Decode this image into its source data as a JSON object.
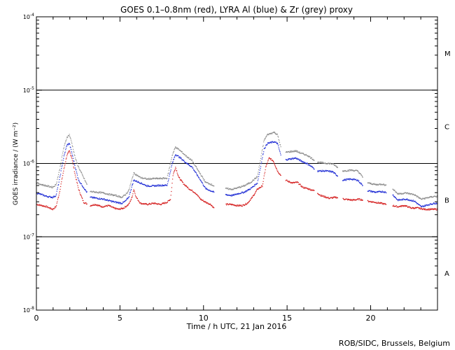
{
  "chart_data": {
    "type": "scatter",
    "title": "GOES 0.1–0.8nm (red), LYRA Al (blue) & Zr (grey) proxy",
    "xlabel": "Time / h UTC, 21 Jan 2016",
    "ylabel": "GOES irradiance / (W m⁻²)",
    "xlim": [
      0,
      24
    ],
    "ylim": [
      1e-08,
      0.0001
    ],
    "yscale": "log",
    "x_ticks": [
      0,
      5,
      10,
      15,
      20
    ],
    "y_ticks": [
      {
        "value": 1e-08,
        "label_base": "10",
        "label_exp": "-8"
      },
      {
        "value": 1e-07,
        "label_base": "10",
        "label_exp": "-7"
      },
      {
        "value": 1e-06,
        "label_base": "10",
        "label_exp": "-6"
      },
      {
        "value": 1e-05,
        "label_base": "10",
        "label_exp": "-5"
      },
      {
        "value": 0.0001,
        "label_base": "10",
        "label_exp": "-4"
      }
    ],
    "reference_lines": [
      1e-07,
      1e-06,
      1e-05
    ],
    "flare_classes": [
      {
        "label": "A",
        "value": 3.2e-08
      },
      {
        "label": "B",
        "value": 3.2e-07
      },
      {
        "label": "C",
        "value": 3.2e-06
      },
      {
        "label": "M",
        "value": 3.2e-05
      }
    ],
    "series": [
      {
        "color": "#d41c1c",
        "points": [
          [
            0.0,
            2.8e-07
          ],
          [
            0.3,
            2.7e-07
          ],
          [
            0.6,
            2.6e-07
          ],
          [
            0.95,
            2.4e-07
          ],
          [
            1.15,
            2.6e-07
          ],
          [
            1.35,
            4e-07
          ],
          [
            1.6,
            8e-07
          ],
          [
            1.8,
            1.3e-06
          ],
          [
            1.95,
            1.5e-06
          ],
          [
            2.1,
            1.2e-06
          ],
          [
            2.3,
            7e-07
          ],
          [
            2.5,
            4.5e-07
          ],
          [
            2.8,
            3e-07
          ],
          [
            3.2,
            2.7e-07
          ],
          [
            3.5,
            2.8e-07
          ],
          [
            3.9,
            2.6e-07
          ],
          [
            4.3,
            2.7e-07
          ],
          [
            4.6,
            2.5e-07
          ],
          [
            4.9,
            2.4e-07
          ],
          [
            5.2,
            2.5e-07
          ],
          [
            5.5,
            2.8e-07
          ],
          [
            5.7,
            3.5e-07
          ],
          [
            5.8,
            4.5e-07
          ],
          [
            5.95,
            3.5e-07
          ],
          [
            6.2,
            2.9e-07
          ],
          [
            6.6,
            2.8e-07
          ],
          [
            7.0,
            2.9e-07
          ],
          [
            7.4,
            2.8e-07
          ],
          [
            7.8,
            3e-07
          ],
          [
            8.0,
            3.3e-07
          ],
          [
            8.15,
            7e-07
          ],
          [
            8.3,
            9e-07
          ],
          [
            8.5,
            6.5e-07
          ],
          [
            8.8,
            5.3e-07
          ],
          [
            9.1,
            4.6e-07
          ],
          [
            9.5,
            4e-07
          ],
          [
            9.8,
            3.3e-07
          ],
          [
            10.1,
            3e-07
          ],
          [
            10.4,
            2.8e-07
          ],
          [
            10.6,
            2.5e-07
          ],
          [
            10.9,
            2.6e-07
          ],
          [
            11.2,
            2.8e-07
          ],
          [
            11.6,
            2.8e-07
          ],
          [
            12.0,
            2.7e-07
          ],
          [
            12.3,
            2.7e-07
          ],
          [
            12.6,
            2.9e-07
          ],
          [
            12.9,
            3.5e-07
          ],
          [
            13.2,
            4.5e-07
          ],
          [
            13.5,
            5e-07
          ],
          [
            13.7,
            9e-07
          ],
          [
            13.9,
            1.2e-06
          ],
          [
            14.15,
            1.1e-06
          ],
          [
            14.4,
            8e-07
          ],
          [
            14.7,
            6.5e-07
          ],
          [
            15.0,
            5.8e-07
          ],
          [
            15.3,
            5.5e-07
          ],
          [
            15.6,
            5.6e-07
          ],
          [
            15.9,
            4.8e-07
          ],
          [
            16.2,
            4.6e-07
          ],
          [
            16.6,
            4.3e-07
          ],
          [
            17.0,
            3.7e-07
          ],
          [
            17.5,
            3.4e-07
          ],
          [
            17.9,
            3.5e-07
          ],
          [
            18.4,
            3.3e-07
          ],
          [
            18.9,
            3.2e-07
          ],
          [
            19.3,
            3.3e-07
          ],
          [
            19.8,
            3.1e-07
          ],
          [
            20.2,
            3e-07
          ],
          [
            20.6,
            2.9e-07
          ],
          [
            20.9,
            2.8e-07
          ],
          [
            21.3,
            2.7e-07
          ],
          [
            21.6,
            2.6e-07
          ],
          [
            22.0,
            2.7e-07
          ],
          [
            22.4,
            2.5e-07
          ],
          [
            22.8,
            2.5e-07
          ],
          [
            23.2,
            2.4e-07
          ],
          [
            23.6,
            2.4e-07
          ],
          [
            24.0,
            2.4e-07
          ]
        ]
      },
      {
        "color": "#1c2ad4",
        "points": [
          [
            0.0,
            4e-07
          ],
          [
            0.3,
            3.8e-07
          ],
          [
            0.6,
            3.6e-07
          ],
          [
            0.95,
            3.5e-07
          ],
          [
            1.15,
            3.7e-07
          ],
          [
            1.35,
            6e-07
          ],
          [
            1.6,
            1.2e-06
          ],
          [
            1.8,
            1.8e-06
          ],
          [
            1.95,
            1.9e-06
          ],
          [
            2.1,
            1.4e-06
          ],
          [
            2.3,
            9e-07
          ],
          [
            2.5,
            6e-07
          ],
          [
            3.2,
            3.5e-07
          ],
          [
            3.6,
            3.4e-07
          ],
          [
            4.0,
            3.3e-07
          ],
          [
            4.2,
            3.2e-07
          ],
          [
            4.7,
            3e-07
          ],
          [
            5.1,
            2.9e-07
          ],
          [
            5.3,
            3.1e-07
          ],
          [
            5.5,
            3.5e-07
          ],
          [
            5.8,
            6e-07
          ],
          [
            6.2,
            5.5e-07
          ],
          [
            6.6,
            5e-07
          ],
          [
            7.0,
            5e-07
          ],
          [
            7.4,
            5.1e-07
          ],
          [
            7.8,
            5.1e-07
          ],
          [
            8.1,
            1e-06
          ],
          [
            8.3,
            1.35e-06
          ],
          [
            8.6,
            1.2e-06
          ],
          [
            8.9,
            1.05e-06
          ],
          [
            9.3,
            9e-07
          ],
          [
            9.6,
            7e-07
          ],
          [
            9.8,
            6e-07
          ],
          [
            10.1,
            4.6e-07
          ],
          [
            10.4,
            4.3e-07
          ],
          [
            10.6,
            4.1e-07
          ],
          [
            11.3,
            3.8e-07
          ],
          [
            11.7,
            3.7e-07
          ],
          [
            12.0,
            3.9e-07
          ],
          [
            12.4,
            4.1e-07
          ],
          [
            12.8,
            4.6e-07
          ],
          [
            13.2,
            5.5e-07
          ],
          [
            13.6,
            1.6e-06
          ],
          [
            13.8,
            1.9e-06
          ],
          [
            14.2,
            2e-06
          ],
          [
            14.4,
            1.9e-06
          ],
          [
            14.7,
            1.1e-06
          ],
          [
            15.0,
            1.15e-06
          ],
          [
            15.5,
            1.2e-06
          ],
          [
            15.8,
            1.1e-06
          ],
          [
            16.2,
            1e-06
          ],
          [
            16.8,
            8e-07
          ],
          [
            17.3,
            8e-07
          ],
          [
            17.7,
            7.8e-07
          ],
          [
            18.3,
            6e-07
          ],
          [
            18.8,
            6.2e-07
          ],
          [
            19.2,
            6e-07
          ],
          [
            19.8,
            4.3e-07
          ],
          [
            20.3,
            4.1e-07
          ],
          [
            20.7,
            4.2e-07
          ],
          [
            21.3,
            3.8e-07
          ],
          [
            21.6,
            3.2e-07
          ],
          [
            22.1,
            3.3e-07
          ],
          [
            22.6,
            3.1e-07
          ],
          [
            23.0,
            2.6e-07
          ],
          [
            23.5,
            2.8e-07
          ],
          [
            23.8,
            2.9e-07
          ],
          [
            24.0,
            2.9e-07
          ]
        ]
      },
      {
        "color": "#8a8a8a",
        "points": [
          [
            0.0,
            5.5e-07
          ],
          [
            0.3,
            5.2e-07
          ],
          [
            0.6,
            5e-07
          ],
          [
            0.95,
            4.8e-07
          ],
          [
            1.15,
            5.2e-07
          ],
          [
            1.35,
            8e-07
          ],
          [
            1.6,
            1.6e-06
          ],
          [
            1.8,
            2.3e-06
          ],
          [
            1.95,
            2.5e-06
          ],
          [
            2.1,
            1.9e-06
          ],
          [
            2.3,
            1.2e-06
          ],
          [
            2.5,
            9e-07
          ],
          [
            3.2,
            4.2e-07
          ],
          [
            3.6,
            4.1e-07
          ],
          [
            4.0,
            4e-07
          ],
          [
            4.2,
            3.9e-07
          ],
          [
            4.7,
            3.7e-07
          ],
          [
            5.1,
            3.5e-07
          ],
          [
            5.3,
            3.8e-07
          ],
          [
            5.5,
            4.3e-07
          ],
          [
            5.8,
            7.5e-07
          ],
          [
            6.2,
            6.5e-07
          ],
          [
            6.6,
            6.2e-07
          ],
          [
            7.0,
            6.3e-07
          ],
          [
            7.4,
            6.3e-07
          ],
          [
            7.8,
            6.4e-07
          ],
          [
            8.1,
            1.3e-06
          ],
          [
            8.3,
            1.7e-06
          ],
          [
            8.6,
            1.5e-06
          ],
          [
            8.9,
            1.3e-06
          ],
          [
            9.3,
            1.1e-06
          ],
          [
            9.6,
            8.5e-07
          ],
          [
            9.8,
            7.2e-07
          ],
          [
            10.1,
            5.6e-07
          ],
          [
            10.4,
            5.3e-07
          ],
          [
            10.6,
            5e-07
          ],
          [
            11.3,
            4.6e-07
          ],
          [
            11.7,
            4.5e-07
          ],
          [
            12.0,
            4.7e-07
          ],
          [
            12.4,
            5e-07
          ],
          [
            12.8,
            5.6e-07
          ],
          [
            13.2,
            6.7e-07
          ],
          [
            13.6,
            2.1e-06
          ],
          [
            13.8,
            2.5e-06
          ],
          [
            14.2,
            2.7e-06
          ],
          [
            14.4,
            2.5e-06
          ],
          [
            14.7,
            1.4e-06
          ],
          [
            15.0,
            1.45e-06
          ],
          [
            15.5,
            1.5e-06
          ],
          [
            15.8,
            1.4e-06
          ],
          [
            16.2,
            1.3e-06
          ],
          [
            16.8,
            1.05e-06
          ],
          [
            17.3,
            1.02e-06
          ],
          [
            17.7,
            1e-06
          ],
          [
            18.3,
            8e-07
          ],
          [
            18.8,
            8.2e-07
          ],
          [
            19.2,
            8e-07
          ],
          [
            19.8,
            5.5e-07
          ],
          [
            20.3,
            5.2e-07
          ],
          [
            20.7,
            5.3e-07
          ],
          [
            21.3,
            4.6e-07
          ],
          [
            21.6,
            3.9e-07
          ],
          [
            22.1,
            4e-07
          ],
          [
            22.6,
            3.8e-07
          ],
          [
            23.0,
            3.3e-07
          ],
          [
            23.5,
            3.5e-07
          ],
          [
            23.8,
            3.6e-07
          ],
          [
            24.0,
            3.6e-07
          ]
        ]
      }
    ],
    "gaps": [
      [
        3.0,
        3.2
      ],
      [
        10.6,
        11.3
      ],
      [
        14.6,
        14.9
      ],
      [
        16.6,
        16.8
      ],
      [
        18.0,
        18.3
      ],
      [
        19.5,
        19.8
      ],
      [
        20.9,
        21.3
      ]
    ]
  },
  "footer": {
    "credit": "ROB/SIDC, Brussels, Belgium"
  }
}
